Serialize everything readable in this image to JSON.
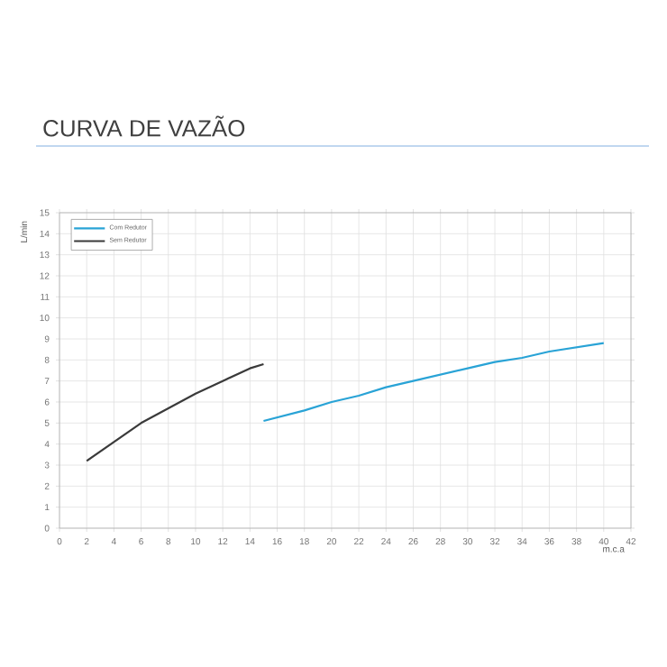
{
  "chart_data": {
    "type": "line",
    "title": "CURVA DE VAZÃO",
    "xlabel": "m.c.a",
    "ylabel": "L/min",
    "xlim": [
      0,
      42
    ],
    "ylim": [
      0,
      15
    ],
    "xticks": [
      0,
      2,
      4,
      6,
      8,
      10,
      12,
      14,
      16,
      18,
      20,
      22,
      24,
      26,
      28,
      30,
      32,
      34,
      36,
      38,
      40,
      42
    ],
    "yticks": [
      0,
      1,
      2,
      3,
      4,
      5,
      6,
      7,
      8,
      9,
      10,
      11,
      12,
      13,
      14,
      15
    ],
    "grid": true,
    "legend": "top left",
    "marker": "none",
    "line_style": "solid",
    "series": [
      {
        "name": "Com Redutor",
        "color": "#29a3d6",
        "x": [
          15,
          18,
          20,
          22,
          24,
          26,
          28,
          30,
          32,
          34,
          36,
          38,
          40
        ],
        "values": [
          5.1,
          5.6,
          6.0,
          6.3,
          6.7,
          7.0,
          7.3,
          7.6,
          7.9,
          8.1,
          8.4,
          8.6,
          8.8
        ]
      },
      {
        "name": "Sem Redutor",
        "color": "#3a3a3a",
        "x": [
          2,
          4,
          6,
          8,
          10,
          12,
          14,
          15
        ],
        "values": [
          3.2,
          4.1,
          5.0,
          5.7,
          6.4,
          7.0,
          7.6,
          7.8
        ]
      }
    ]
  }
}
